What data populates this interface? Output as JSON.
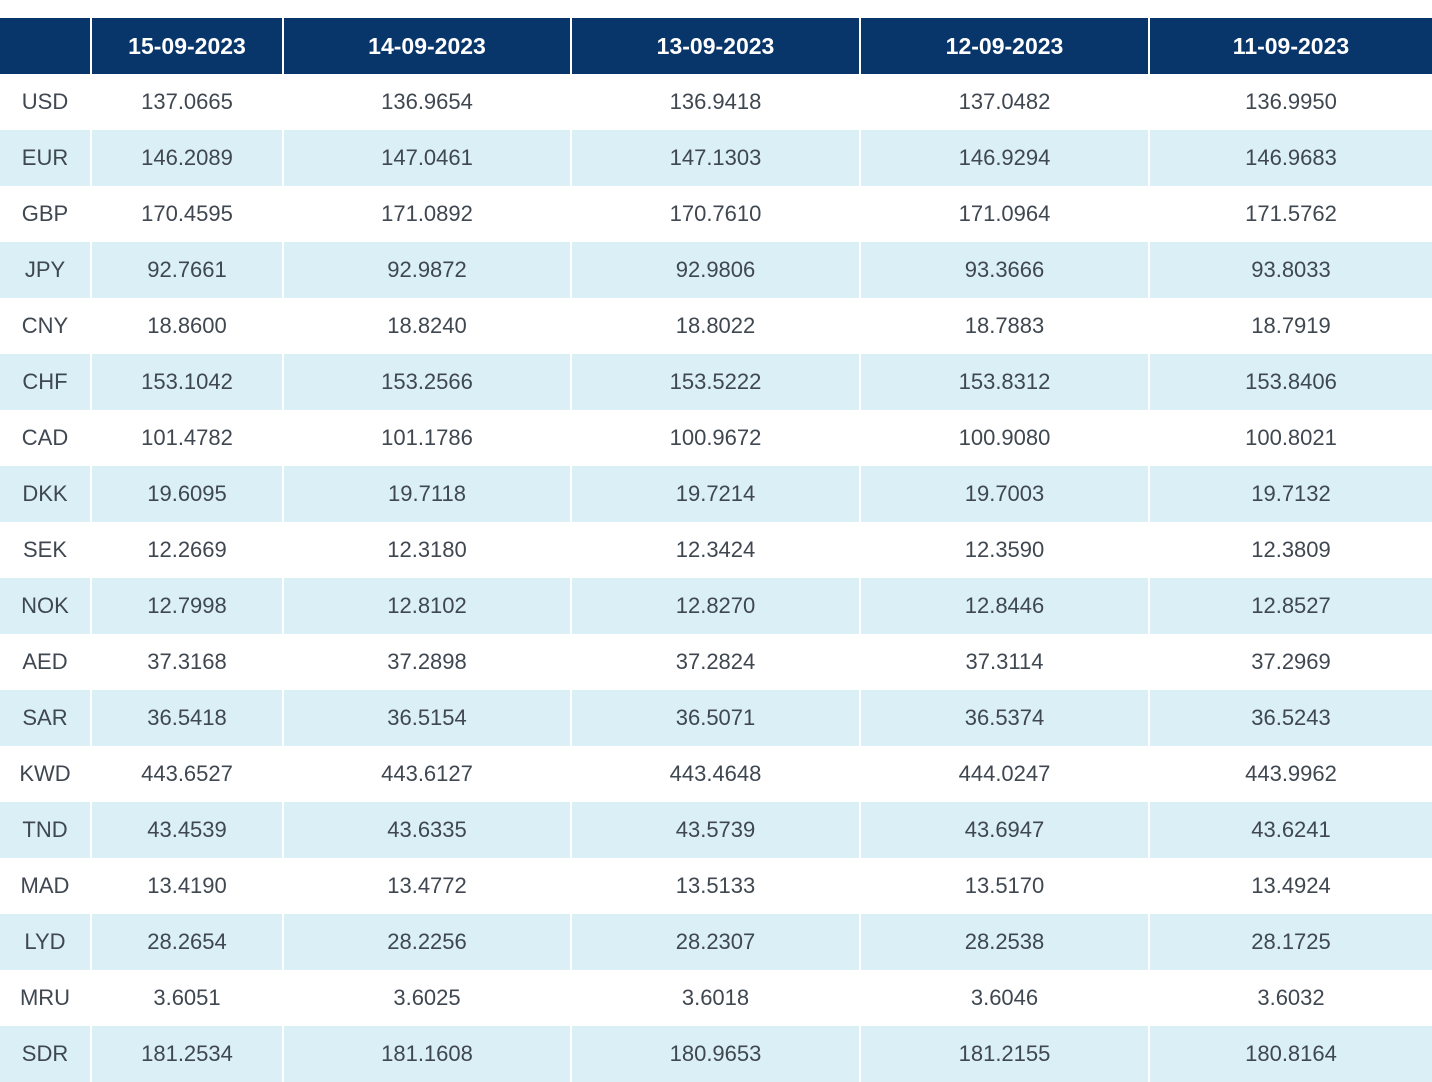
{
  "table": {
    "corner": "",
    "dates": [
      "15-09-2023",
      "14-09-2023",
      "13-09-2023",
      "12-09-2023",
      "11-09-2023"
    ],
    "rows": [
      {
        "currency": "USD",
        "values": [
          "137.0665",
          "136.9654",
          "136.9418",
          "137.0482",
          "136.9950"
        ]
      },
      {
        "currency": "EUR",
        "values": [
          "146.2089",
          "147.0461",
          "147.1303",
          "146.9294",
          "146.9683"
        ]
      },
      {
        "currency": "GBP",
        "values": [
          "170.4595",
          "171.0892",
          "170.7610",
          "171.0964",
          "171.5762"
        ]
      },
      {
        "currency": "JPY",
        "values": [
          "92.7661",
          "92.9872",
          "92.9806",
          "93.3666",
          "93.8033"
        ]
      },
      {
        "currency": "CNY",
        "values": [
          "18.8600",
          "18.8240",
          "18.8022",
          "18.7883",
          "18.7919"
        ]
      },
      {
        "currency": "CHF",
        "values": [
          "153.1042",
          "153.2566",
          "153.5222",
          "153.8312",
          "153.8406"
        ]
      },
      {
        "currency": "CAD",
        "values": [
          "101.4782",
          "101.1786",
          "100.9672",
          "100.9080",
          "100.8021"
        ]
      },
      {
        "currency": "DKK",
        "values": [
          "19.6095",
          "19.7118",
          "19.7214",
          "19.7003",
          "19.7132"
        ]
      },
      {
        "currency": "SEK",
        "values": [
          "12.2669",
          "12.3180",
          "12.3424",
          "12.3590",
          "12.3809"
        ]
      },
      {
        "currency": "NOK",
        "values": [
          "12.7998",
          "12.8102",
          "12.8270",
          "12.8446",
          "12.8527"
        ]
      },
      {
        "currency": "AED",
        "values": [
          "37.3168",
          "37.2898",
          "37.2824",
          "37.3114",
          "37.2969"
        ]
      },
      {
        "currency": "SAR",
        "values": [
          "36.5418",
          "36.5154",
          "36.5071",
          "36.5374",
          "36.5243"
        ]
      },
      {
        "currency": "KWD",
        "values": [
          "443.6527",
          "443.6127",
          "443.4648",
          "444.0247",
          "443.9962"
        ]
      },
      {
        "currency": "TND",
        "values": [
          "43.4539",
          "43.6335",
          "43.5739",
          "43.6947",
          "43.6241"
        ]
      },
      {
        "currency": "MAD",
        "values": [
          "13.4190",
          "13.4772",
          "13.5133",
          "13.5170",
          "13.4924"
        ]
      },
      {
        "currency": "LYD",
        "values": [
          "28.2654",
          "28.2256",
          "28.2307",
          "28.2538",
          "28.1725"
        ]
      },
      {
        "currency": "MRU",
        "values": [
          "3.6051",
          "3.6025",
          "3.6018",
          "3.6046",
          "3.6032"
        ]
      },
      {
        "currency": "SDR",
        "values": [
          "181.2534",
          "181.1608",
          "180.9653",
          "181.2155",
          "180.8164"
        ]
      }
    ]
  },
  "colors": {
    "header_bg": "#08356a",
    "header_text": "#ffffff",
    "stripe_bg": "#dbeff6",
    "cell_text": "#3f4750"
  }
}
